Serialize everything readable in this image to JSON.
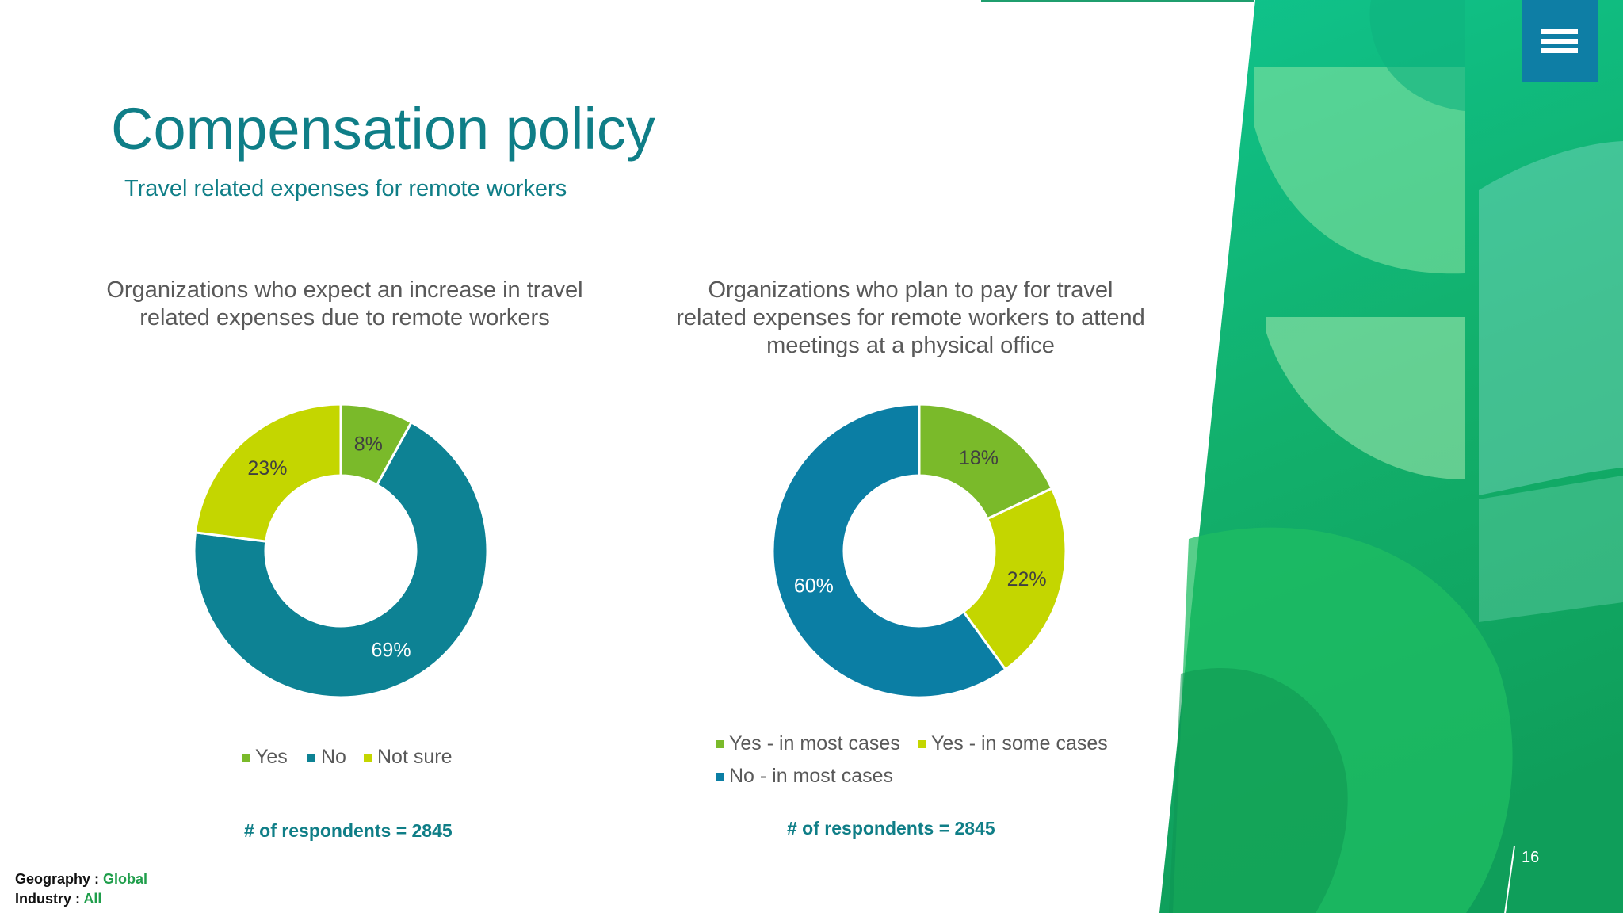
{
  "header": {
    "title": "Compensation policy",
    "subtitle": "Travel related expenses for remote workers"
  },
  "menu_icon": "hamburger-menu-icon",
  "colors": {
    "brand_teal": "#0f7e87",
    "yes_green": "#7aba2a",
    "no_teal": "#0d8294",
    "not_sure_lime": "#c4d600",
    "no_blue": "#0b7ea4",
    "bg_green": "#13b57a"
  },
  "chart_data": [
    {
      "type": "donut",
      "title": "Organizations who expect an increase in travel related expenses due to remote workers",
      "categories": [
        "Yes",
        "No",
        "Not sure"
      ],
      "values": [
        8,
        69,
        23
      ],
      "value_labels": [
        "8%",
        "69%",
        "23%"
      ],
      "colors": [
        "#7aba2a",
        "#0d8294",
        "#c4d600"
      ],
      "legend": "bottom",
      "respondents": "# of respondents  = 2845"
    },
    {
      "type": "donut",
      "title": "Organizations who plan to pay for travel related expenses for remote workers to attend meetings at a physical office",
      "categories": [
        "Yes - in most cases",
        "Yes - in some cases",
        "No - in most cases"
      ],
      "values": [
        18,
        22,
        60
      ],
      "value_labels": [
        "18%",
        "22%",
        "60%"
      ],
      "colors": [
        "#7aba2a",
        "#c4d600",
        "#0b7ea4"
      ],
      "legend": "bottom",
      "respondents": "# of respondents  = 2845"
    }
  ],
  "footer": {
    "geography_label": "Geography :",
    "geography_value": "Global",
    "industry_label": "Industry :",
    "industry_value": "All"
  },
  "page_number": "16"
}
